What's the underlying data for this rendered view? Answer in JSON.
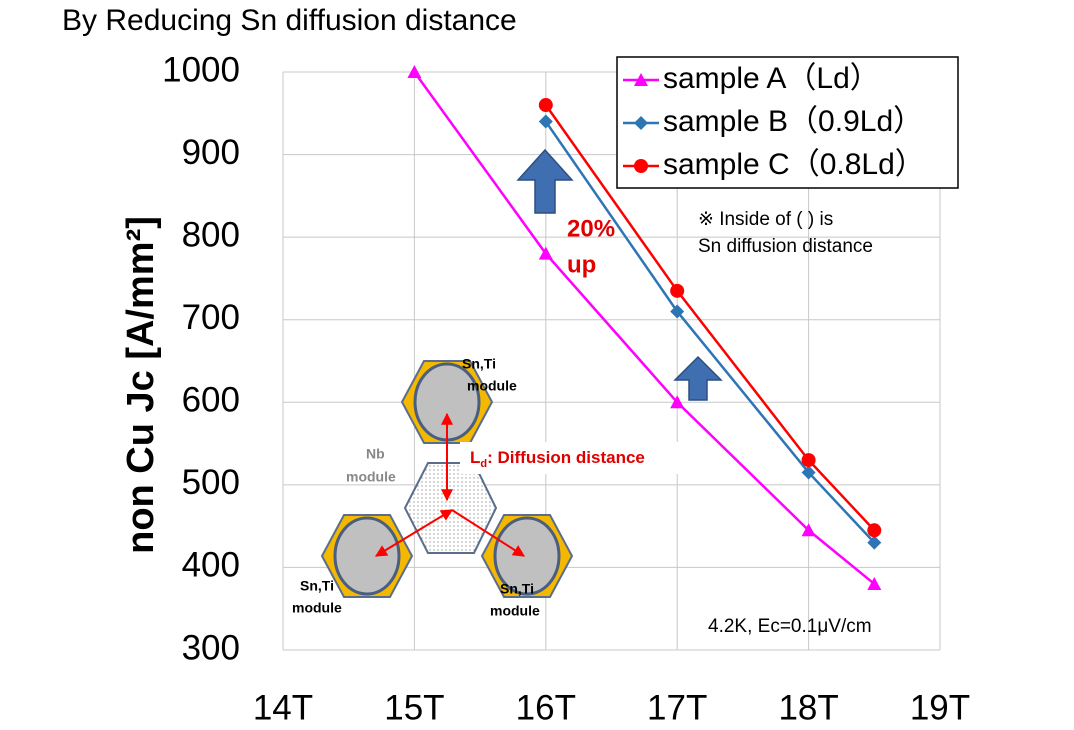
{
  "chart_data": {
    "type": "line",
    "title": "By Reducing Sn diffusion distance",
    "y_label": "non Cu  Jc [A/mm²]",
    "xlim": [
      14,
      19
    ],
    "xticks": [
      {
        "value": 14,
        "label": "14T"
      },
      {
        "value": 15,
        "label": "15T"
      },
      {
        "value": 16,
        "label": "16T"
      },
      {
        "value": 17,
        "label": "17T"
      },
      {
        "value": 18,
        "label": "18T"
      },
      {
        "value": 19,
        "label": "19T"
      }
    ],
    "ylim": [
      300,
      1000
    ],
    "yticks": [
      300,
      400,
      500,
      600,
      700,
      800,
      900,
      1000
    ],
    "grid": true,
    "legend": "upper right",
    "series": [
      {
        "name": "sample A（Ld）",
        "color": "#ff00ff",
        "marker": "triangle",
        "x": [
          15,
          16,
          17,
          18,
          18.5
        ],
        "values": [
          1000,
          780,
          600,
          445,
          380
        ]
      },
      {
        "name": "sample B（0.9Ld）",
        "color": "#2e75b6",
        "marker": "diamond",
        "x": [
          16,
          17,
          18,
          18.5
        ],
        "values": [
          940,
          710,
          515,
          430
        ]
      },
      {
        "name": "sample C（0.8Ld）",
        "color": "#ff0000",
        "marker": "circle",
        "x": [
          16,
          17,
          18,
          18.5
        ],
        "values": [
          960,
          735,
          530,
          445
        ]
      }
    ],
    "annotations": {
      "improvement": [
        "20%",
        "up"
      ],
      "note": [
        "※ Inside of ( ) is",
        "Sn diffusion distance"
      ],
      "condition": "4.2K, Ec=0.1μV/cm",
      "diagram": {
        "top_module": [
          "Sn,Ti",
          "module"
        ],
        "center_module": [
          "Nb",
          "module"
        ],
        "left_module": [
          "Sn,Ti",
          "module"
        ],
        "right_module": [
          "Sn,Ti",
          "module"
        ],
        "distance_symbol": "L",
        "distance_subscript": "d",
        "distance_label": ": Diffusion distance"
      }
    }
  }
}
